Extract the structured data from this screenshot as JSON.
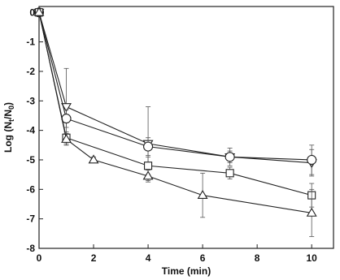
{
  "chart_data": {
    "type": "line",
    "xlabel": "Time (min)",
    "ylabel_parts": [
      "Log (N",
      "t",
      "/N",
      "0",
      ")"
    ],
    "xlim": [
      0,
      10.8
    ],
    "ylim": [
      -8,
      0.2
    ],
    "xticks": [
      0,
      2,
      4,
      6,
      8,
      10
    ],
    "yticks": [
      0,
      -1,
      -2,
      -3,
      -4,
      -5,
      -6,
      -7,
      -8
    ],
    "color": "#222222",
    "series": [
      {
        "marker": "triangle-down",
        "x": [
          0,
          1,
          4,
          7,
          10
        ],
        "values": [
          0,
          -3.2,
          -4.45,
          -4.9,
          -5.1
        ],
        "errors": [
          0,
          1.3,
          1.25,
          0.3,
          0.45
        ]
      },
      {
        "marker": "circle",
        "x": [
          0,
          1,
          4,
          7,
          10
        ],
        "values": [
          0,
          -3.6,
          -4.55,
          -4.9,
          -5.0
        ],
        "errors": [
          0,
          0.3,
          0.3,
          0.2,
          0.5
        ]
      },
      {
        "marker": "square",
        "x": [
          0,
          1,
          4,
          7,
          10
        ],
        "values": [
          0,
          -4.25,
          -5.2,
          -5.45,
          -6.2
        ],
        "errors": [
          0,
          0.2,
          0.3,
          0.2,
          0.4
        ]
      },
      {
        "marker": "triangle-up",
        "x": [
          0,
          1,
          2,
          4,
          6,
          10
        ],
        "values": [
          0,
          -4.3,
          -5.0,
          -5.55,
          -6.2,
          -6.8
        ],
        "errors": [
          0,
          0.2,
          0.1,
          0.2,
          0.75,
          0.8
        ]
      }
    ]
  }
}
